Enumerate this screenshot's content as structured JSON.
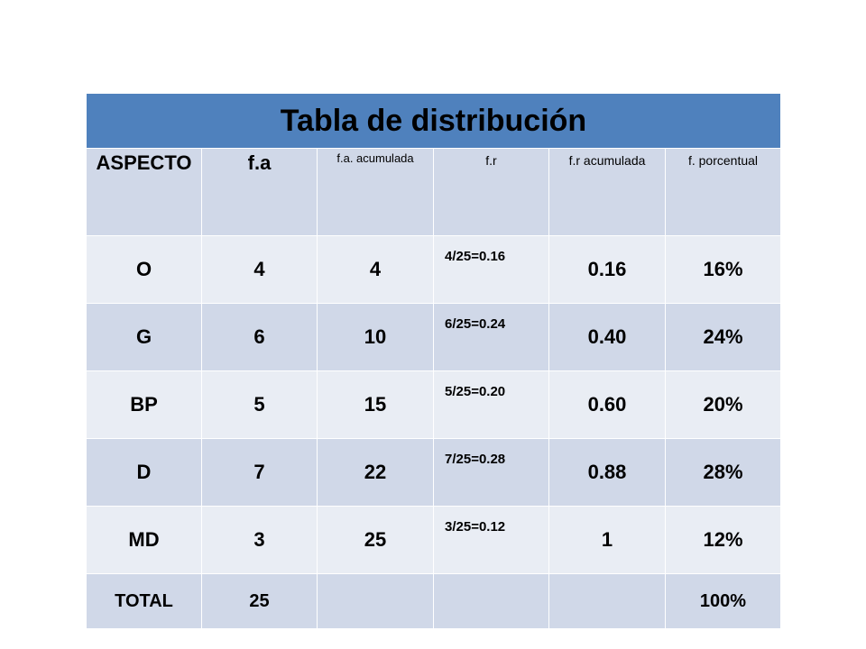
{
  "title": "Tabla de distribución",
  "headers": [
    "ASPECTO",
    "f.a",
    "f.a. acumulada",
    "f.r",
    "f.r acumulada",
    "f. porcentual"
  ],
  "rows": [
    {
      "aspecto": "O",
      "fa": "4",
      "fa_acum": "4",
      "fr": "4/25=0.16",
      "fr_acum": "0.16",
      "porcentual": "16%"
    },
    {
      "aspecto": "G",
      "fa": "6",
      "fa_acum": "10",
      "fr": "6/25=0.24",
      "fr_acum": "0.40",
      "porcentual": "24%"
    },
    {
      "aspecto": "BP",
      "fa": "5",
      "fa_acum": "15",
      "fr": "5/25=0.20",
      "fr_acum": "0.60",
      "porcentual": "20%"
    },
    {
      "aspecto": "D",
      "fa": "7",
      "fa_acum": "22",
      "fr": "7/25=0.28",
      "fr_acum": "0.88",
      "porcentual": "28%"
    },
    {
      "aspecto": "MD",
      "fa": "3",
      "fa_acum": "25",
      "fr": "3/25=0.12",
      "fr_acum": "1",
      "porcentual": "12%"
    }
  ],
  "total": {
    "aspecto": "TOTAL",
    "fa": "25",
    "fa_acum": "",
    "fr": "",
    "fr_acum": "",
    "porcentual": "100%"
  },
  "colors": {
    "title_bg": "#4f81bd",
    "row_dark": "#d0d8e8",
    "row_light": "#e9edf4"
  }
}
